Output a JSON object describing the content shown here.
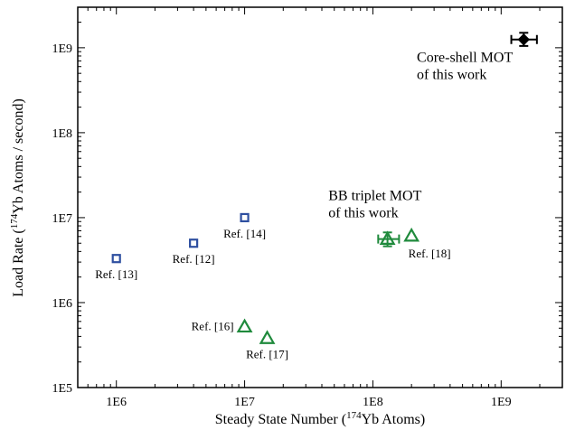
{
  "chart_data": {
    "type": "scatter",
    "xscale": "log",
    "yscale": "log",
    "xlim": [
      500000,
      3000000000
    ],
    "ylim": [
      100000,
      3000000000
    ],
    "xticks": [
      {
        "value": 1000000,
        "label": "1E6"
      },
      {
        "value": 10000000,
        "label": "1E7"
      },
      {
        "value": 100000000,
        "label": "1E8"
      },
      {
        "value": 1000000000,
        "label": "1E9"
      }
    ],
    "yticks": [
      {
        "value": 100000,
        "label": "1E5"
      },
      {
        "value": 1000000,
        "label": "1E6"
      },
      {
        "value": 10000000,
        "label": "1E7"
      },
      {
        "value": 100000000,
        "label": "1E8"
      },
      {
        "value": 1000000000,
        "label": "1E9"
      }
    ],
    "xlabel": {
      "pre": "Steady State Number (",
      "sup": "174",
      "post": "Yb Atoms)"
    },
    "ylabel": {
      "pre": "Load Rate (",
      "sup": "174",
      "post": "Yb Atoms / second)"
    },
    "grid": false,
    "colors": {
      "squares": "#2e4fa0",
      "triangles": "#1f8a3c",
      "core_shell": "#000000"
    },
    "series": [
      {
        "marker": "square",
        "points": [
          {
            "x": 1000000,
            "y": 3300000,
            "label": "Ref. [13]",
            "label_pos": "below"
          },
          {
            "x": 4000000,
            "y": 5000000,
            "label": "Ref. [12]",
            "label_pos": "below"
          },
          {
            "x": 10000000,
            "y": 10000000,
            "label": "Ref. [14]",
            "label_pos": "below"
          }
        ]
      },
      {
        "marker": "triangle",
        "points": [
          {
            "x": 10000000,
            "y": 520000,
            "label": "Ref. [16]",
            "label_pos": "left"
          },
          {
            "x": 15000000,
            "y": 380000,
            "label": "Ref. [17]",
            "label_pos": "below"
          },
          {
            "x": 200000000,
            "y": 6100000,
            "label": "Ref. [18]",
            "label_pos": "below-right"
          }
        ]
      },
      {
        "marker": "triangle-errorbar",
        "points": [
          {
            "x": 130000000,
            "y": 5600000,
            "xerr": [
              110000000,
              160000000
            ],
            "yerr": [
              4600000,
              6700000
            ]
          }
        ]
      },
      {
        "marker": "diamond-errorbar",
        "points": [
          {
            "x": 1500000000,
            "y": 1250000000,
            "xerr": [
              1200000000,
              1900000000
            ],
            "yerr": [
              1050000000,
              1500000000
            ]
          }
        ]
      }
    ],
    "annotations": [
      {
        "lines": [
          "BB triplet MOT",
          "of this work"
        ],
        "anchor": {
          "x": 45000000,
          "y": 16000000
        }
      },
      {
        "lines": [
          "Core-shell MOT",
          "of this work"
        ],
        "anchor": {
          "x": 220000000,
          "y": 680000000
        }
      }
    ]
  }
}
